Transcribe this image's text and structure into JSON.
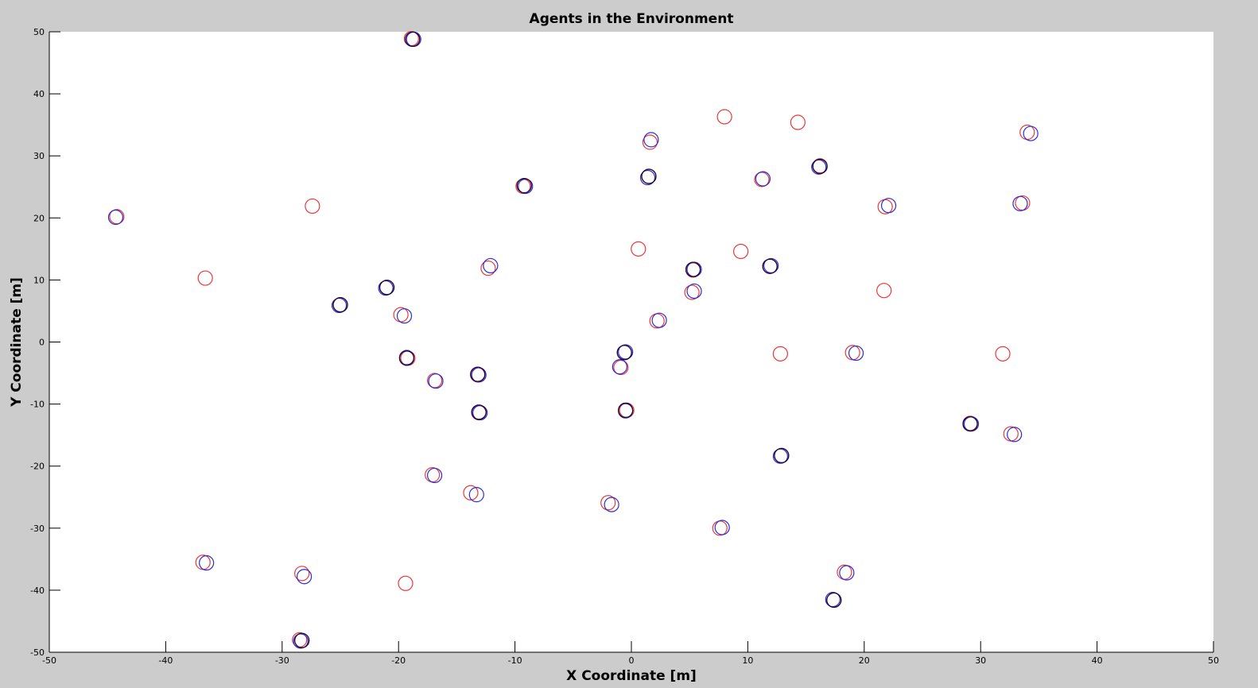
{
  "colors": {
    "figure_background": "#cccccc",
    "axes_background": "#ffffff",
    "axis_color": "#000000"
  },
  "chart_data": {
    "type": "scatter",
    "title": "Agents in the Environment",
    "xlabel": "X Coordinate [m]",
    "ylabel": "Y Coordinate [m]",
    "xlim": [
      -50,
      50
    ],
    "ylim": [
      -50,
      50
    ],
    "xticks": [
      -50,
      -40,
      -30,
      -20,
      -10,
      0,
      10,
      20,
      30,
      40,
      50
    ],
    "yticks": [
      -50,
      -40,
      -30,
      -20,
      -10,
      0,
      10,
      20,
      30,
      40,
      50
    ],
    "xtick_labels": [
      "-50",
      "-40",
      "-30",
      "-20",
      "-10",
      "0",
      "10",
      "20",
      "30",
      "40",
      "50"
    ],
    "ytick_labels": [
      "-50",
      "-40",
      "-30",
      "-20",
      "-10",
      "0",
      "10",
      "20",
      "30",
      "40",
      "50"
    ],
    "grid": false,
    "marker": "circle-open",
    "series": [
      {
        "color": "#e8393a",
        "points": [
          [
            -18.9,
            48.9
          ],
          [
            -44.2,
            20.2
          ],
          [
            -27.4,
            21.9
          ],
          [
            -36.6,
            10.3
          ],
          [
            -25.0,
            6.0
          ],
          [
            -21.0,
            8.8
          ],
          [
            -19.8,
            4.4
          ],
          [
            -19.2,
            -2.6
          ],
          [
            -16.9,
            -6.2
          ],
          [
            -12.3,
            11.9
          ],
          [
            -9.3,
            25.1
          ],
          [
            -13.2,
            -5.3
          ],
          [
            -13.1,
            -11.4
          ],
          [
            -17.1,
            -21.4
          ],
          [
            -13.8,
            -24.3
          ],
          [
            -2.0,
            -25.9
          ],
          [
            -36.8,
            -35.5
          ],
          [
            -28.3,
            -37.3
          ],
          [
            -19.4,
            -38.9
          ],
          [
            -28.5,
            -48.0
          ],
          [
            1.6,
            32.2
          ],
          [
            1.5,
            26.7
          ],
          [
            0.6,
            15.0
          ],
          [
            5.3,
            11.6
          ],
          [
            5.2,
            8.0
          ],
          [
            2.2,
            3.4
          ],
          [
            -0.6,
            -1.7
          ],
          [
            -0.9,
            -4.1
          ],
          [
            -0.4,
            -11.0
          ],
          [
            7.6,
            -30.0
          ],
          [
            8.0,
            36.3
          ],
          [
            14.3,
            35.4
          ],
          [
            16.2,
            28.4
          ],
          [
            11.2,
            26.2
          ],
          [
            9.4,
            14.6
          ],
          [
            11.9,
            12.2
          ],
          [
            12.8,
            -1.9
          ],
          [
            12.9,
            -18.3
          ],
          [
            21.8,
            21.8
          ],
          [
            21.7,
            8.3
          ],
          [
            19.0,
            -1.7
          ],
          [
            18.3,
            -37.1
          ],
          [
            17.4,
            -41.6
          ],
          [
            34.0,
            33.8
          ],
          [
            33.6,
            22.4
          ],
          [
            31.9,
            -1.9
          ],
          [
            29.1,
            -13.1
          ],
          [
            32.6,
            -14.8
          ]
        ]
      },
      {
        "color": "#2b2bd9",
        "points": [
          [
            -18.7,
            48.8
          ],
          [
            -44.3,
            20.1
          ],
          [
            -25.1,
            5.9
          ],
          [
            -21.1,
            8.7
          ],
          [
            -19.5,
            4.2
          ],
          [
            -19.3,
            -2.5
          ],
          [
            -16.8,
            -6.3
          ],
          [
            -12.1,
            12.3
          ],
          [
            -9.1,
            25.1
          ],
          [
            -13.1,
            -5.3
          ],
          [
            -13.0,
            -11.4
          ],
          [
            -16.9,
            -21.5
          ],
          [
            -13.3,
            -24.6
          ],
          [
            -1.7,
            -26.2
          ],
          [
            -36.5,
            -35.6
          ],
          [
            -28.1,
            -37.8
          ],
          [
            -28.4,
            -48.2
          ],
          [
            1.7,
            32.6
          ],
          [
            1.4,
            26.5
          ],
          [
            5.4,
            11.7
          ],
          [
            5.4,
            8.2
          ],
          [
            2.4,
            3.5
          ],
          [
            -0.5,
            -1.6
          ],
          [
            -1.0,
            -4.0
          ],
          [
            -0.5,
            -11.1
          ],
          [
            7.8,
            -29.9
          ],
          [
            16.1,
            28.2
          ],
          [
            11.3,
            26.3
          ],
          [
            12.0,
            12.3
          ],
          [
            12.8,
            -18.4
          ],
          [
            22.1,
            22.0
          ],
          [
            19.3,
            -1.8
          ],
          [
            18.5,
            -37.2
          ],
          [
            17.3,
            -41.5
          ],
          [
            34.3,
            33.6
          ],
          [
            33.4,
            22.3
          ],
          [
            29.2,
            -13.2
          ],
          [
            32.9,
            -14.9
          ]
        ]
      },
      {
        "color": "#1e0a2e",
        "points": [
          [
            -18.8,
            48.8
          ],
          [
            -25.0,
            6.0
          ],
          [
            -21.0,
            8.8
          ],
          [
            -19.3,
            -2.6
          ],
          [
            -9.2,
            25.2
          ],
          [
            -13.2,
            -5.2
          ],
          [
            -13.1,
            -11.3
          ],
          [
            -28.3,
            -48.1
          ],
          [
            1.5,
            26.7
          ],
          [
            5.3,
            11.7
          ],
          [
            -0.6,
            -1.7
          ],
          [
            -0.5,
            -11.0
          ],
          [
            16.2,
            28.3
          ],
          [
            11.9,
            12.2
          ],
          [
            12.9,
            -18.3
          ],
          [
            17.4,
            -41.6
          ],
          [
            29.1,
            -13.2
          ]
        ]
      }
    ]
  }
}
